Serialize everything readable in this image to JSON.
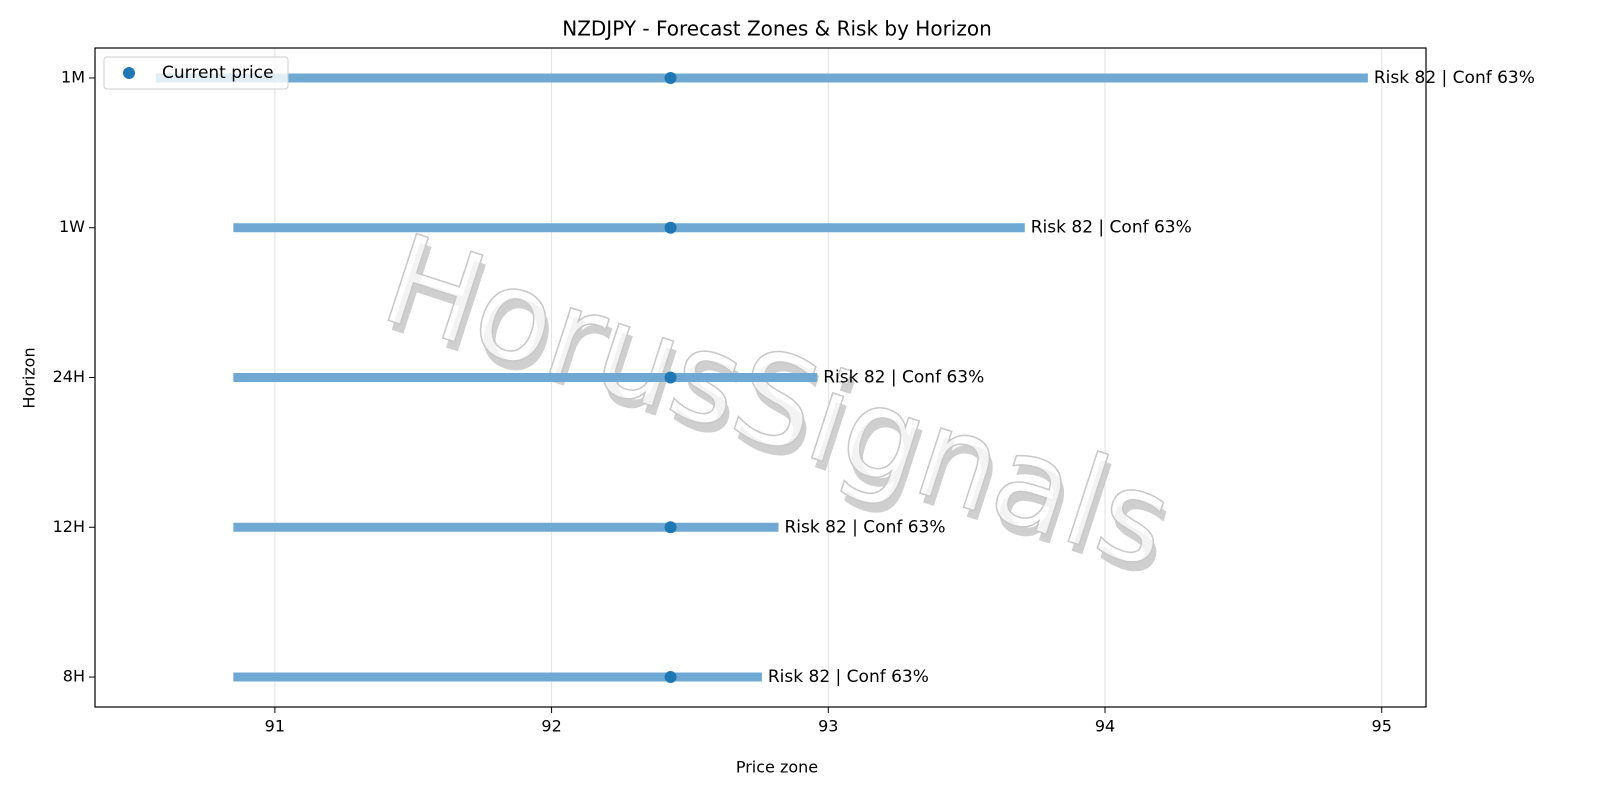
{
  "chart_data": {
    "type": "range",
    "title": "NZDJPY - Forecast Zones & Risk by Horizon",
    "x_label": "Price zone",
    "y_label": "Horizon",
    "categories": [
      "1M",
      "1W",
      "24H",
      "12H",
      "8H"
    ],
    "ranges": {
      "color": "#6fa8d3",
      "low": [
        90.57,
        90.85,
        90.85,
        90.85,
        90.85
      ],
      "high": [
        94.95,
        93.71,
        92.96,
        92.82,
        92.76
      ]
    },
    "points": {
      "name": "Current price",
      "color": "#1f77b4",
      "values": [
        92.43,
        92.43,
        92.43,
        92.43,
        92.43
      ]
    },
    "annotations": [
      "Risk 82 | Conf 63%",
      "Risk 82 | Conf 63%",
      "Risk 82 | Conf 63%",
      "Risk 82 | Conf 63%",
      "Risk 82 | Conf 63%"
    ],
    "xlim": [
      90.35,
      95.16
    ],
    "xticks": [
      91,
      92,
      93,
      94,
      95
    ],
    "grid": true,
    "legend": "upper left",
    "watermark": "HorusSignals"
  }
}
